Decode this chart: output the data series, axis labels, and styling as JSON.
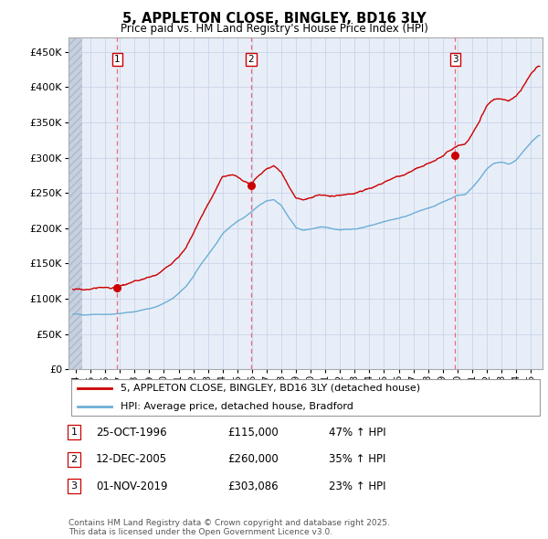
{
  "title": "5, APPLETON CLOSE, BINGLEY, BD16 3LY",
  "subtitle": "Price paid vs. HM Land Registry's House Price Index (HPI)",
  "ylabel_ticks": [
    "£0",
    "£50K",
    "£100K",
    "£150K",
    "£200K",
    "£250K",
    "£300K",
    "£350K",
    "£400K",
    "£450K"
  ],
  "ylim": [
    0,
    470000
  ],
  "xlim_start": 1993.5,
  "xlim_end": 2025.8,
  "transaction_dates": [
    1996.82,
    2005.95,
    2019.84
  ],
  "transaction_values": [
    115000,
    260000,
    303086
  ],
  "transaction_labels": [
    "1",
    "2",
    "3"
  ],
  "legend_line1": "5, APPLETON CLOSE, BINGLEY, BD16 3LY (detached house)",
  "legend_line2": "HPI: Average price, detached house, Bradford",
  "table_rows": [
    [
      "1",
      "25-OCT-1996",
      "£115,000",
      "47% ↑ HPI"
    ],
    [
      "2",
      "12-DEC-2005",
      "£260,000",
      "35% ↑ HPI"
    ],
    [
      "3",
      "01-NOV-2019",
      "£303,086",
      "23% ↑ HPI"
    ]
  ],
  "footer": "Contains HM Land Registry data © Crown copyright and database right 2025.\nThis data is licensed under the Open Government Licence v3.0.",
  "hpi_line_color": "#6baed6",
  "price_line_color": "#cc0000",
  "dot_color": "#cc0000",
  "vline_color": "#ee6677",
  "grid_color": "#c8d4e8",
  "plot_bg_color": "#e8eef8",
  "hatch_color": "#c8d0e0"
}
